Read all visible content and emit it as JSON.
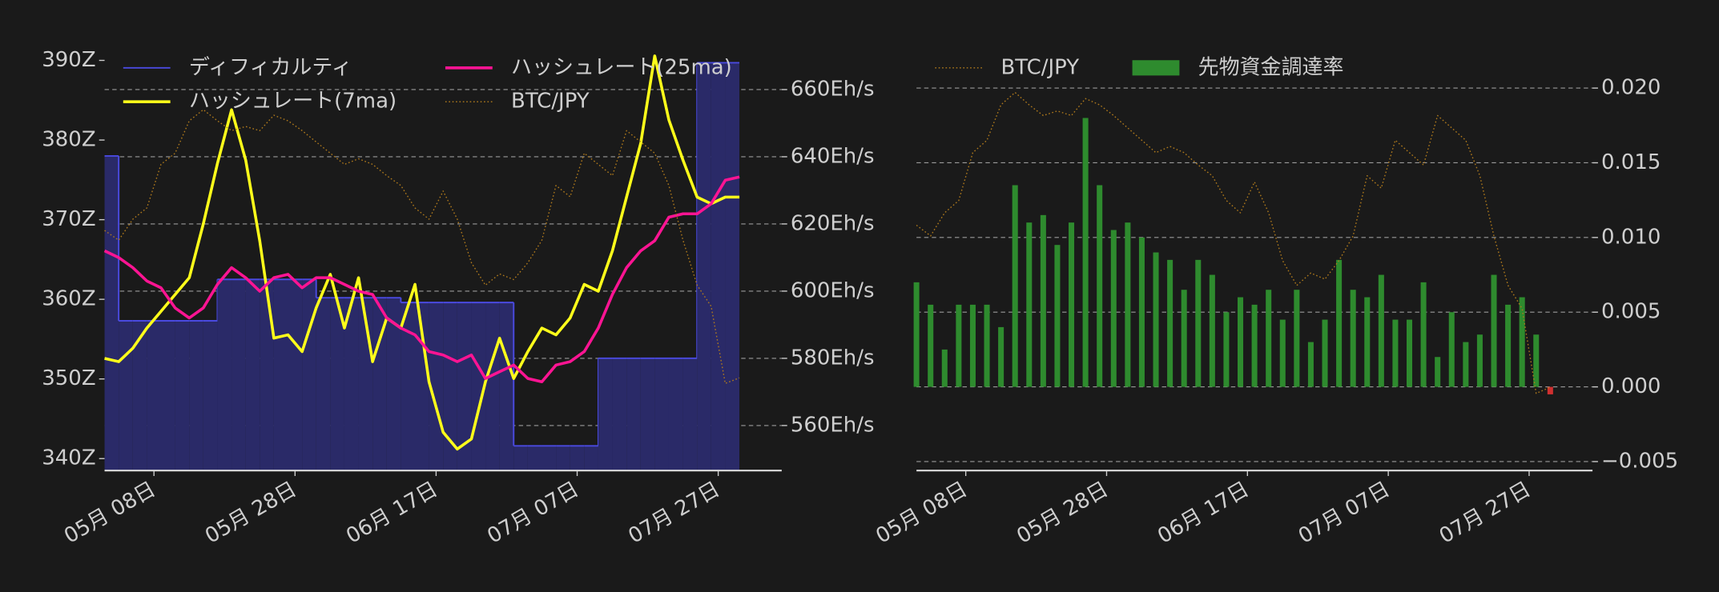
{
  "chart_data": [
    {
      "type": "line",
      "x": [
        "05-01",
        "05-03",
        "05-05",
        "05-07",
        "05-09",
        "05-11",
        "05-13",
        "05-15",
        "05-17",
        "05-19",
        "05-21",
        "05-23",
        "05-25",
        "05-27",
        "05-29",
        "05-31",
        "06-02",
        "06-04",
        "06-06",
        "06-08",
        "06-10",
        "06-12",
        "06-14",
        "06-16",
        "06-18",
        "06-20",
        "06-22",
        "06-24",
        "06-26",
        "06-28",
        "06-30",
        "07-02",
        "07-04",
        "07-06",
        "07-08",
        "07-10",
        "07-12",
        "07-14",
        "07-16",
        "07-18",
        "07-20",
        "07-22",
        "07-24",
        "07-26",
        "07-28",
        "07-30"
      ],
      "xlim": [
        "05-01",
        "08-05"
      ],
      "xticks": [
        {
          "value": "05-08",
          "label": "05月 08日"
        },
        {
          "value": "05-28",
          "label": "05月 28日"
        },
        {
          "value": "06-17",
          "label": "06月 17日"
        },
        {
          "value": "07-07",
          "label": "07月 07日"
        },
        {
          "value": "07-27",
          "label": "07月 27日"
        }
      ],
      "ylim": [
        338.5,
        391.4
      ],
      "yticks": [
        {
          "value": 340,
          "label": "340Z"
        },
        {
          "value": 350,
          "label": "350Z"
        },
        {
          "value": 360,
          "label": "360Z"
        },
        {
          "value": 370,
          "label": "370Z"
        },
        {
          "value": 380,
          "label": "380Z"
        },
        {
          "value": 390,
          "label": "390Z"
        }
      ],
      "y2lim": [
        546.6,
        672.0
      ],
      "y2ticks": [
        {
          "value": 560,
          "label": "560Eh/s"
        },
        {
          "value": 580,
          "label": "580Eh/s"
        },
        {
          "value": 600,
          "label": "600Eh/s"
        },
        {
          "value": 620,
          "label": "620Eh/s"
        },
        {
          "value": 640,
          "label": "640Eh/s"
        },
        {
          "value": 660,
          "label": "660Eh/s"
        }
      ],
      "y3lim": [
        8500000,
        11500000
      ],
      "grid": "y2",
      "legend": "upper left",
      "legend_columns": 2,
      "series": [
        {
          "name": "ディフィカルティ",
          "kind": "step",
          "axis": "y",
          "color": "#4a4ae0",
          "fill": "#2a2a68",
          "values": [
            378,
            357.3,
            357.3,
            357.3,
            357.3,
            357.3,
            357.3,
            357.3,
            362.5,
            362.5,
            362.5,
            362.5,
            362.5,
            362.5,
            362.5,
            360.2,
            360.2,
            360.2,
            360.2,
            360.2,
            360.2,
            359.6,
            359.6,
            359.6,
            359.6,
            359.6,
            359.6,
            359.6,
            359.6,
            341.6,
            341.6,
            341.6,
            341.6,
            341.6,
            341.6,
            352.6,
            352.6,
            352.6,
            352.6,
            352.6,
            352.6,
            352.6,
            389.7,
            389.7,
            389.7,
            389.7
          ]
        },
        {
          "name": "ハッシュレート(7ma)",
          "kind": "line",
          "axis": "y2",
          "color": "#ffff1a",
          "linestyle": "solid",
          "values": [
            580,
            579,
            583,
            589,
            594,
            599,
            604,
            620,
            638,
            654,
            639,
            615,
            586,
            587,
            582,
            595,
            605,
            589,
            604,
            579,
            592,
            589,
            602,
            573,
            558,
            553,
            556,
            573,
            586,
            574,
            582,
            589,
            587,
            592,
            602,
            600,
            612,
            628,
            644,
            670,
            651,
            639,
            628,
            626,
            628,
            628
          ]
        },
        {
          "name": "ハッシュレート(25ma)",
          "kind": "line",
          "axis": "y2",
          "color": "#ff1493",
          "linestyle": "solid",
          "values": [
            612,
            610,
            607,
            603,
            601,
            595,
            592,
            595,
            602,
            607,
            604,
            600,
            604,
            605,
            601,
            604,
            604,
            602,
            600,
            599,
            592,
            589,
            587,
            582,
            581,
            579,
            581,
            574,
            576,
            578,
            574,
            573,
            578,
            579,
            582,
            589,
            599,
            607,
            612,
            615,
            622,
            623,
            623,
            626,
            633,
            634
          ]
        },
        {
          "name": "BTC/JPY",
          "kind": "line",
          "axis": "y3",
          "color": "#b07a1c",
          "linestyle": "dotted",
          "values": [
            10210000,
            10140000,
            10290000,
            10370000,
            10680000,
            10760000,
            10990000,
            11070000,
            10990000,
            10920000,
            10950000,
            10920000,
            11030000,
            10990000,
            10920000,
            10840000,
            10760000,
            10680000,
            10720000,
            10680000,
            10600000,
            10530000,
            10370000,
            10290000,
            10490000,
            10290000,
            9980000,
            9820000,
            9900000,
            9860000,
            9980000,
            10140000,
            10530000,
            10450000,
            10760000,
            10680000,
            10600000,
            10920000,
            10840000,
            10760000,
            10530000,
            10140000,
            9820000,
            9670000,
            9120000,
            9160000
          ]
        }
      ]
    },
    {
      "type": "bar",
      "x": [
        "05-01",
        "05-03",
        "05-05",
        "05-07",
        "05-09",
        "05-11",
        "05-13",
        "05-15",
        "05-17",
        "05-19",
        "05-21",
        "05-23",
        "05-25",
        "05-27",
        "05-29",
        "05-31",
        "06-02",
        "06-04",
        "06-06",
        "06-08",
        "06-10",
        "06-12",
        "06-14",
        "06-16",
        "06-18",
        "06-20",
        "06-22",
        "06-24",
        "06-26",
        "06-28",
        "06-30",
        "07-02",
        "07-04",
        "07-06",
        "07-08",
        "07-10",
        "07-12",
        "07-14",
        "07-16",
        "07-18",
        "07-20",
        "07-22",
        "07-24",
        "07-26",
        "07-28",
        "07-30"
      ],
      "xlim": [
        "05-01",
        "08-05"
      ],
      "xticks": [
        {
          "value": "05-08",
          "label": "05月 08日"
        },
        {
          "value": "05-28",
          "label": "05月 28日"
        },
        {
          "value": "06-17",
          "label": "06月 17日"
        },
        {
          "value": "07-07",
          "label": "07月 07日"
        },
        {
          "value": "07-27",
          "label": "07月 27日"
        }
      ],
      "y2lim": [
        -0.0056,
        0.0226
      ],
      "y2ticks": [
        {
          "value": -0.005,
          "label": "−0.005"
        },
        {
          "value": 0,
          "label": "0.000"
        },
        {
          "value": 0.005,
          "label": "0.005"
        },
        {
          "value": 0.01,
          "label": "0.010"
        },
        {
          "value": 0.015,
          "label": "0.015"
        },
        {
          "value": 0.02,
          "label": "0.020"
        }
      ],
      "y3lim": [
        8620000,
        11350000
      ],
      "grid": "y2",
      "legend": "upper left",
      "legend_columns": 2,
      "series": [
        {
          "name": "BTC/JPY",
          "kind": "line",
          "axis": "y3",
          "color": "#b07a1c",
          "linestyle": "dotted",
          "values": [
            10210000,
            10140000,
            10290000,
            10370000,
            10680000,
            10760000,
            10990000,
            11070000,
            10990000,
            10920000,
            10950000,
            10920000,
            11030000,
            10990000,
            10920000,
            10840000,
            10760000,
            10680000,
            10720000,
            10680000,
            10600000,
            10530000,
            10370000,
            10290000,
            10490000,
            10290000,
            9980000,
            9820000,
            9900000,
            9860000,
            9980000,
            10140000,
            10530000,
            10450000,
            10760000,
            10680000,
            10600000,
            10920000,
            10840000,
            10760000,
            10530000,
            10140000,
            9820000,
            9670000,
            9120000,
            9160000
          ]
        },
        {
          "name": "先物資金調達率",
          "kind": "bar",
          "axis": "y2",
          "color": "#2e8b2e",
          "negative_color": "#d03030",
          "values": [
            0.007,
            0.0055,
            0.0025,
            0.0055,
            0.0055,
            0.0055,
            0.004,
            0.0135,
            0.011,
            0.0115,
            0.0095,
            0.011,
            0.018,
            0.0135,
            0.0105,
            0.011,
            0.01,
            0.009,
            0.0085,
            0.0065,
            0.0085,
            0.0075,
            0.005,
            0.006,
            0.0055,
            0.0065,
            0.0045,
            0.0065,
            0.003,
            0.0045,
            0.0085,
            0.0065,
            0.006,
            0.0075,
            0.0045,
            0.0045,
            0.007,
            0.002,
            0.005,
            0.003,
            0.0035,
            0.0075,
            0.0055,
            0.006,
            0.0035,
            -0.0005
          ]
        }
      ]
    }
  ]
}
